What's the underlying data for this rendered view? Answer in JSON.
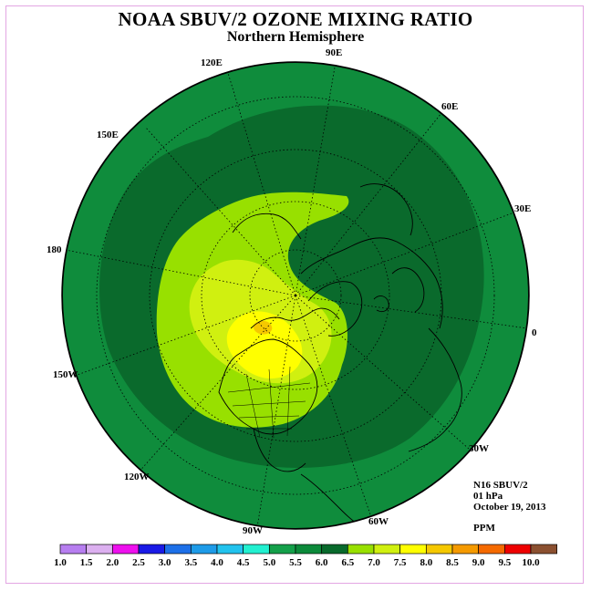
{
  "title": "NOAA SBUV/2 OZONE MIXING RATIO",
  "subtitle": "Northern Hemisphere",
  "longitude_labels": {
    "lon_90E": "90E",
    "lon_120E": "120E",
    "lon_60E": "60E",
    "lon_150E": "150E",
    "lon_30E": "30E",
    "lon_180": "180",
    "lon_0": "0",
    "lon_150W": "150W",
    "lon_30W": "30W",
    "lon_120W": "120W",
    "lon_60W": "60W",
    "lon_90W": "90W"
  },
  "info": {
    "satellite": "N16 SBUV/2",
    "level": "01 hPa",
    "date": "October 19, 2013",
    "units": "PPM"
  },
  "colorbar": {
    "labels": [
      "1.0",
      "1.5",
      "2.0",
      "2.5",
      "3.0",
      "3.5",
      "4.0",
      "4.5",
      "5.0",
      "5.5",
      "6.0",
      "6.5",
      "7.0",
      "7.5",
      "8.0",
      "8.5",
      "9.0",
      "9.5",
      "10.0"
    ],
    "colors": [
      "#b77ef0",
      "#dcb0f0",
      "#ee10ee",
      "#1a1ae6",
      "#1d70e8",
      "#1e9be8",
      "#22c3ee",
      "#22f0d0",
      "#14a04a",
      "#0c8a3a",
      "#086a2c",
      "#98e000",
      "#d0f010",
      "#ffff00",
      "#f5c800",
      "#f59a00",
      "#f56a00",
      "#ee0000",
      "#8b5030"
    ]
  },
  "map_colors": {
    "outer_ring": "#0f8c3c",
    "dark_band": "#0a6a2c",
    "lime": "#98e000",
    "yellow_green": "#d0f010",
    "yellow": "#ffff00",
    "peak": "#f5c800",
    "coastline": "#000000"
  },
  "map_levels_shown_ppm": {
    "outer_ring": "5.0-5.5",
    "dark_band": "5.5-6.0",
    "lime": "6.0-6.5",
    "yellow_green": "6.5-7.0",
    "yellow": "7.0-7.5",
    "peak": "7.5-8.0"
  }
}
